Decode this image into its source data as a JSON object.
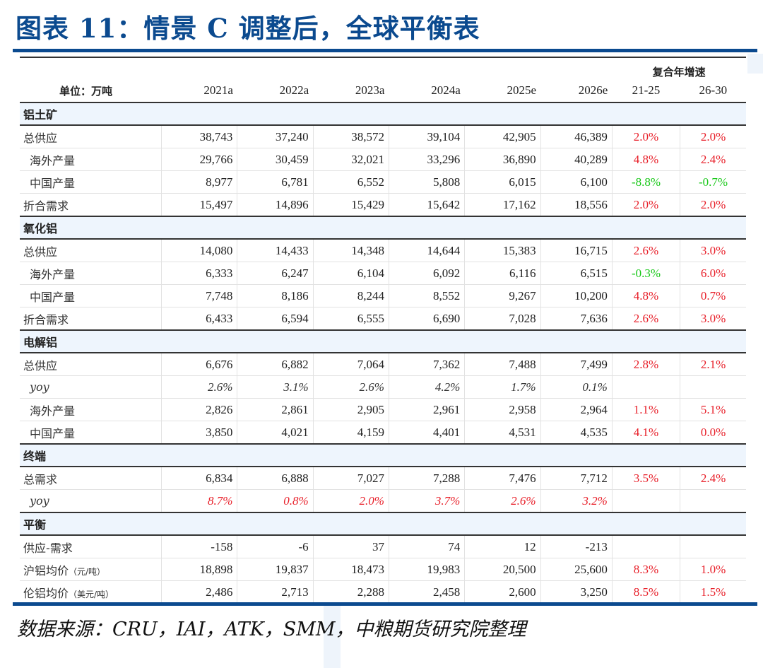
{
  "title": "图表 11：情景 C 调整后，全球平衡表",
  "header": {
    "unit_label": "单位：万吨",
    "years": [
      "2021a",
      "2022a",
      "2023a",
      "2024a",
      "2025e",
      "2026e"
    ],
    "cagr_label": "复合年增速",
    "cagr_periods": [
      "21-25",
      "26-30"
    ]
  },
  "sections": [
    {
      "name": "铝土矿",
      "rows": [
        {
          "label": "总供应",
          "sub": false,
          "values": [
            "38,743",
            "37,240",
            "38,572",
            "39,104",
            "42,905",
            "46,389"
          ],
          "cagr": [
            "2.0%",
            "2.0%"
          ],
          "cagr_color": [
            "red",
            "red"
          ]
        },
        {
          "label": "海外产量",
          "sub": true,
          "values": [
            "29,766",
            "30,459",
            "32,021",
            "33,296",
            "36,890",
            "40,289"
          ],
          "cagr": [
            "4.8%",
            "2.4%"
          ],
          "cagr_color": [
            "red",
            "red"
          ]
        },
        {
          "label": "中国产量",
          "sub": true,
          "values": [
            "8,977",
            "6,781",
            "6,552",
            "5,808",
            "6,015",
            "6,100"
          ],
          "cagr": [
            "-8.8%",
            "-0.7%"
          ],
          "cagr_color": [
            "green",
            "green"
          ]
        },
        {
          "label": "折合需求",
          "sub": false,
          "values": [
            "15,497",
            "14,896",
            "15,429",
            "15,642",
            "17,162",
            "18,556"
          ],
          "cagr": [
            "2.0%",
            "2.0%"
          ],
          "cagr_color": [
            "red",
            "red"
          ]
        }
      ]
    },
    {
      "name": "氧化铝",
      "rows": [
        {
          "label": "总供应",
          "sub": false,
          "values": [
            "14,080",
            "14,433",
            "14,348",
            "14,644",
            "15,383",
            "16,715"
          ],
          "cagr": [
            "2.6%",
            "3.0%"
          ],
          "cagr_color": [
            "red",
            "red"
          ]
        },
        {
          "label": "海外产量",
          "sub": true,
          "values": [
            "6,333",
            "6,247",
            "6,104",
            "6,092",
            "6,116",
            "6,515"
          ],
          "cagr": [
            "-0.3%",
            "6.0%"
          ],
          "cagr_color": [
            "green",
            "red"
          ]
        },
        {
          "label": "中国产量",
          "sub": true,
          "values": [
            "7,748",
            "8,186",
            "8,244",
            "8,552",
            "9,267",
            "10,200"
          ],
          "cagr": [
            "4.8%",
            "0.7%"
          ],
          "cagr_color": [
            "red",
            "red"
          ]
        },
        {
          "label": "折合需求",
          "sub": false,
          "values": [
            "6,433",
            "6,594",
            "6,555",
            "6,690",
            "7,028",
            "7,636"
          ],
          "cagr": [
            "2.6%",
            "3.0%"
          ],
          "cagr_color": [
            "red",
            "red"
          ]
        }
      ]
    },
    {
      "name": "电解铝",
      "rows": [
        {
          "label": "总供应",
          "sub": false,
          "values": [
            "6,676",
            "6,882",
            "7,064",
            "7,362",
            "7,488",
            "7,499"
          ],
          "cagr": [
            "2.8%",
            "2.1%"
          ],
          "cagr_color": [
            "red",
            "red"
          ]
        },
        {
          "label": "yoy",
          "sub": true,
          "yoy": true,
          "values": [
            "2.6%",
            "3.1%",
            "2.6%",
            "4.2%",
            "1.7%",
            "0.1%"
          ],
          "cagr": [
            "",
            ""
          ],
          "cagr_color": [
            "",
            ""
          ]
        },
        {
          "label": "海外产量",
          "sub": true,
          "values": [
            "2,826",
            "2,861",
            "2,905",
            "2,961",
            "2,958",
            "2,964"
          ],
          "cagr": [
            "1.1%",
            "5.1%"
          ],
          "cagr_color": [
            "red",
            "red"
          ]
        },
        {
          "label": "中国产量",
          "sub": true,
          "values": [
            "3,850",
            "4,021",
            "4,159",
            "4,401",
            "4,531",
            "4,535"
          ],
          "cagr": [
            "4.1%",
            "0.0%"
          ],
          "cagr_color": [
            "red",
            "red"
          ]
        }
      ]
    },
    {
      "name": "终端",
      "rows": [
        {
          "label": "总需求",
          "sub": false,
          "values": [
            "6,834",
            "6,888",
            "7,027",
            "7,288",
            "7,476",
            "7,712"
          ],
          "cagr": [
            "3.5%",
            "2.4%"
          ],
          "cagr_color": [
            "red",
            "red"
          ]
        },
        {
          "label": "yoy",
          "sub": true,
          "yoy": true,
          "yoy_red": true,
          "values": [
            "8.7%",
            "0.8%",
            "2.0%",
            "3.7%",
            "2.6%",
            "3.2%"
          ],
          "cagr": [
            "",
            ""
          ],
          "cagr_color": [
            "",
            ""
          ]
        }
      ]
    },
    {
      "name": "平衡",
      "rows": [
        {
          "label": "供应-需求",
          "sub": false,
          "values": [
            "-158",
            "-6",
            "37",
            "74",
            "12",
            "-213"
          ],
          "cagr": [
            "",
            ""
          ],
          "cagr_color": [
            "",
            ""
          ]
        },
        {
          "label": "沪铝均价",
          "unit": "（元/吨）",
          "sub": false,
          "values": [
            "18,898",
            "19,837",
            "18,473",
            "19,983",
            "20,500",
            "25,600"
          ],
          "cagr": [
            "8.3%",
            "1.0%"
          ],
          "cagr_color": [
            "red",
            "red"
          ]
        },
        {
          "label": "伦铝均价",
          "unit": "（美元/吨）",
          "sub": false,
          "values": [
            "2,486",
            "2,713",
            "2,288",
            "2,458",
            "2,600",
            "3,250"
          ],
          "cagr": [
            "8.5%",
            "1.5%"
          ],
          "cagr_color": [
            "red",
            "red"
          ]
        }
      ]
    }
  ],
  "source": "数据来源：CRU，IAI，ATK，SMM，中粮期货研究院整理",
  "colors": {
    "brand_blue": "#0b4a8f",
    "section_bg": "#eef5fd",
    "positive_red": "#e8202a",
    "negative_green": "#18c818"
  }
}
